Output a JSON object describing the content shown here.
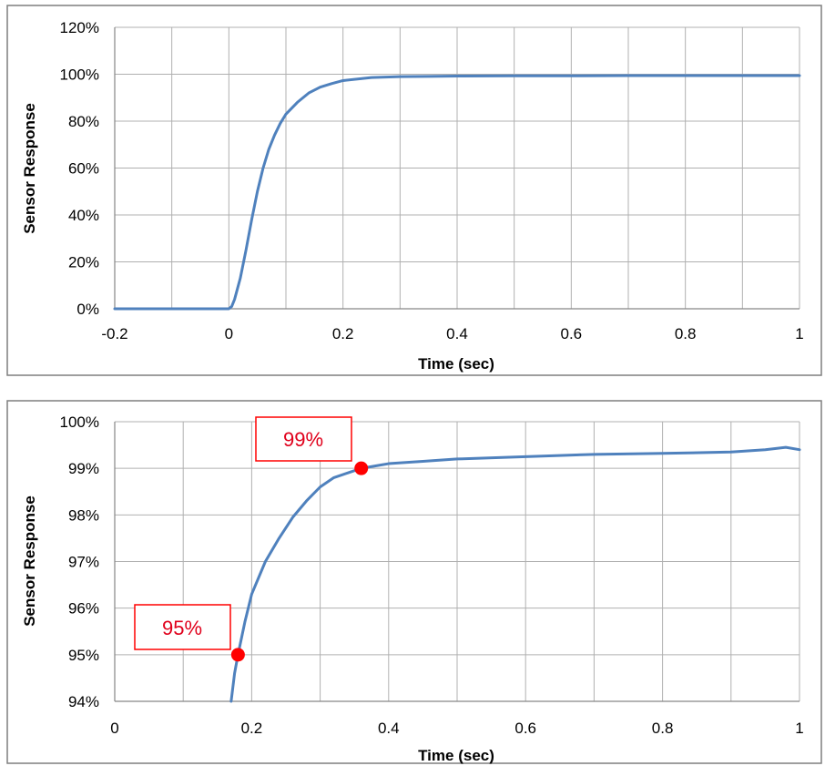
{
  "colors": {
    "series": "#4f81bd",
    "grid": "#b0b0b0",
    "frame": "#7f7f7f",
    "annotation": "#ff0000"
  },
  "chart_data": [
    {
      "type": "line",
      "title": "",
      "xlabel": "Time (sec)",
      "ylabel": "Sensor Response",
      "xlim": [
        -0.2,
        1.0
      ],
      "ylim": [
        0,
        120
      ],
      "x_ticks": [
        -0.2,
        0,
        0.2,
        0.4,
        0.6,
        0.8,
        1
      ],
      "x_tick_labels": [
        "-0.2",
        "0",
        "0.2",
        "0.4",
        "0.6",
        "0.8",
        "1"
      ],
      "y_ticks": [
        0,
        20,
        40,
        60,
        80,
        100,
        120
      ],
      "y_tick_labels": [
        "0%",
        "20%",
        "40%",
        "60%",
        "80%",
        "100%",
        "120%"
      ],
      "x_minor_gridlines": [
        -0.1,
        0.1,
        0.3,
        0.5,
        0.7,
        0.9
      ],
      "grid": true,
      "legend": "none",
      "series": [
        {
          "x": [
            -0.2,
            -0.1,
            0,
            0.005,
            0.01,
            0.02,
            0.03,
            0.04,
            0.05,
            0.06,
            0.07,
            0.08,
            0.09,
            0.1,
            0.12,
            0.14,
            0.16,
            0.18,
            0.2,
            0.25,
            0.3,
            0.35,
            0.4,
            0.5,
            0.6,
            0.7,
            0.8,
            0.9,
            1.0
          ],
          "y": [
            0,
            0,
            0,
            1,
            4,
            13,
            25,
            38,
            50,
            60,
            68,
            74,
            79,
            83,
            88,
            92,
            94.5,
            96,
            97.3,
            98.6,
            99,
            99.1,
            99.2,
            99.3,
            99.3,
            99.4,
            99.4,
            99.4,
            99.4
          ]
        }
      ]
    },
    {
      "type": "line",
      "title": "",
      "xlabel": "Time (sec)",
      "ylabel": "Sensor Response",
      "xlim": [
        0,
        1.0
      ],
      "ylim": [
        94,
        100
      ],
      "x_ticks": [
        0,
        0.2,
        0.4,
        0.6,
        0.8,
        1
      ],
      "x_tick_labels": [
        "0",
        "0.2",
        "0.4",
        "0.6",
        "0.8",
        "1"
      ],
      "y_ticks": [
        94,
        95,
        96,
        97,
        98,
        99,
        100
      ],
      "y_tick_labels": [
        "94%",
        "95%",
        "96%",
        "97%",
        "98%",
        "99%",
        "100%"
      ],
      "x_minor_gridlines": [
        0.1,
        0.3,
        0.5,
        0.7,
        0.9
      ],
      "grid": true,
      "legend": "none",
      "series": [
        {
          "x": [
            0.17,
            0.175,
            0.18,
            0.19,
            0.2,
            0.22,
            0.24,
            0.26,
            0.28,
            0.3,
            0.32,
            0.34,
            0.36,
            0.38,
            0.4,
            0.45,
            0.5,
            0.6,
            0.7,
            0.8,
            0.9,
            0.95,
            0.98,
            1.0
          ],
          "y": [
            94.0,
            94.6,
            95.0,
            95.7,
            96.3,
            97.0,
            97.5,
            97.95,
            98.3,
            98.6,
            98.8,
            98.9,
            99.0,
            99.05,
            99.1,
            99.15,
            99.2,
            99.25,
            99.3,
            99.32,
            99.35,
            99.4,
            99.45,
            99.4
          ]
        }
      ],
      "annotations": [
        {
          "text": "95%",
          "x": 0.18,
          "y": 95
        },
        {
          "text": "99%",
          "x": 0.36,
          "y": 99
        }
      ]
    }
  ]
}
